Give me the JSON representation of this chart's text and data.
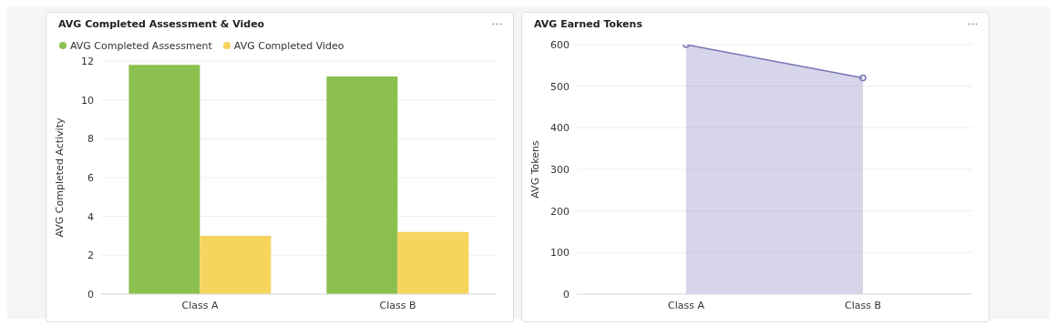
{
  "chart_data": [
    {
      "type": "bar",
      "title": "AVG Completed Assessment & Video",
      "ylabel": "AVG Completed Activity",
      "categories": [
        "Class A",
        "Class B"
      ],
      "series": [
        {
          "name": "AVG Completed Assessment",
          "color": "#8bc04f",
          "values": [
            11.8,
            11.2
          ]
        },
        {
          "name": "AVG Completed Video",
          "color": "#f7d45e",
          "values": [
            3.0,
            3.2
          ]
        }
      ],
      "ylim": [
        0,
        12
      ],
      "yticks": [
        0,
        2,
        4,
        6,
        8,
        10,
        12
      ],
      "grid": "y",
      "legend": "top left"
    },
    {
      "type": "area",
      "title": "AVG Earned Tokens",
      "ylabel": "AVG Tokens",
      "categories": [
        "Class A",
        "Class B"
      ],
      "series": [
        {
          "color": "#7774b6",
          "values": [
            600,
            520
          ]
        }
      ],
      "ylim": [
        0,
        600
      ],
      "yticks": [
        0,
        100,
        200,
        300,
        400,
        500,
        600
      ],
      "grid": "y",
      "marker": "circle"
    }
  ]
}
